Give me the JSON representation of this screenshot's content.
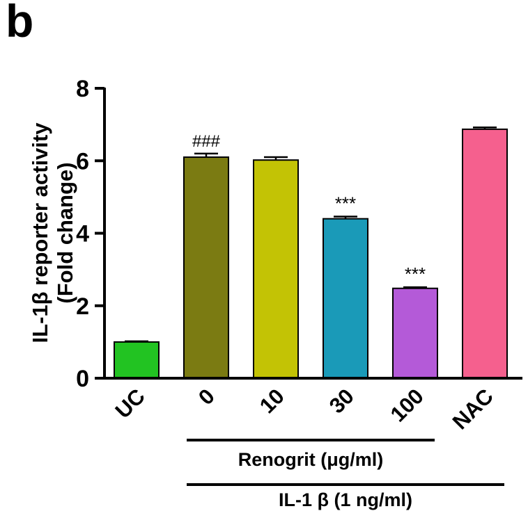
{
  "panel_label": "b",
  "chart_data": {
    "type": "bar",
    "ylabel": "IL-1β reporter activity",
    "ylabel_line2": "(Fold change)",
    "ylim": [
      0,
      8
    ],
    "yticks": [
      0,
      2,
      4,
      6,
      8
    ],
    "grid": false,
    "categories": [
      "UC",
      "0",
      "10",
      "30",
      "100",
      "NAC"
    ],
    "values": [
      1.0,
      6.1,
      6.02,
      4.4,
      2.48,
      6.87
    ],
    "errors": [
      0.02,
      0.1,
      0.08,
      0.06,
      0.03,
      0.05
    ],
    "annotations": [
      "",
      "###",
      "",
      "***",
      "***",
      ""
    ],
    "colors": [
      "#22c322",
      "#7b7b12",
      "#c3c305",
      "#1a9ab8",
      "#b45ad8",
      "#f5608e"
    ],
    "groups": [
      {
        "label": "Renogrit (μg/ml)",
        "from": 1,
        "to": 4
      },
      {
        "label": "IL-1 β (1 ng/ml)",
        "from": 1,
        "to": 5
      }
    ]
  }
}
